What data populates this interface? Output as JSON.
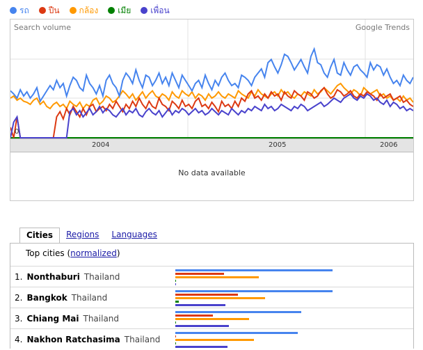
{
  "legend": [
    {
      "label": "รถ",
      "color": "#4684ee"
    },
    {
      "label": "ปืน",
      "color": "#dc3912"
    },
    {
      "label": "กล้อง",
      "color": "#ff9900"
    },
    {
      "label": "เมีย",
      "color": "#008000"
    },
    {
      "label": "เพื่อน",
      "color": "#4942cc"
    }
  ],
  "chart": {
    "search_volume_label": "Search volume",
    "google_trends_label": "Google Trends",
    "zero_label": "0",
    "years": [
      "2004",
      "2005",
      "2006"
    ],
    "no_data": "No data available"
  },
  "chart_data": {
    "type": "line",
    "x_start": "2003-12",
    "x_end": "2006-03",
    "series": [
      {
        "name": "รถ",
        "color": "#4684ee",
        "values": [
          45,
          42,
          38,
          46,
          40,
          44,
          38,
          42,
          48,
          35,
          40,
          45,
          50,
          46,
          55,
          48,
          52,
          40,
          50,
          58,
          55,
          48,
          45,
          60,
          52,
          48,
          42,
          50,
          40,
          55,
          60,
          52,
          48,
          40,
          55,
          62,
          58,
          52,
          65,
          55,
          48,
          60,
          58,
          50,
          55,
          62,
          52,
          58,
          50,
          62,
          55,
          48,
          60,
          55,
          50,
          45,
          52,
          55,
          48,
          60,
          52,
          46,
          55,
          50,
          58,
          62,
          55,
          50,
          52,
          48,
          60,
          58,
          55,
          50,
          58,
          62,
          66,
          58,
          72,
          75,
          68,
          62,
          70,
          80,
          78,
          72,
          65,
          70,
          75,
          68,
          62,
          78,
          85,
          72,
          70,
          62,
          58,
          68,
          75,
          62,
          60,
          72,
          65,
          60,
          68,
          70,
          65,
          62,
          58,
          72,
          65,
          70,
          68,
          60,
          66,
          58,
          52,
          55,
          50,
          60,
          55,
          52,
          58
        ]
      },
      {
        "name": "ปืน",
        "color": "#dc3912",
        "values": [
          10,
          0,
          20,
          0,
          0,
          0,
          0,
          0,
          0,
          0,
          0,
          0,
          0,
          0,
          20,
          25,
          18,
          28,
          22,
          30,
          25,
          20,
          28,
          22,
          30,
          32,
          25,
          28,
          30,
          26,
          32,
          28,
          35,
          30,
          25,
          32,
          28,
          35,
          30,
          38,
          32,
          28,
          35,
          30,
          28,
          38,
          32,
          30,
          26,
          35,
          32,
          28,
          36,
          30,
          32,
          28,
          35,
          38,
          30,
          32,
          28,
          34,
          30,
          25,
          35,
          30,
          32,
          28,
          35,
          30,
          38,
          35,
          42,
          45,
          38,
          40,
          36,
          42,
          38,
          44,
          40,
          42,
          36,
          44,
          40,
          38,
          45,
          42,
          40,
          36,
          44,
          42,
          38,
          40,
          45,
          48,
          42,
          38,
          40,
          46,
          44,
          40,
          42,
          45,
          40,
          38,
          42,
          40,
          44,
          42,
          40,
          36,
          42,
          38,
          40,
          42,
          36,
          38,
          40,
          34,
          36,
          32,
          30
        ]
      },
      {
        "name": "กล้อง",
        "color": "#ff9900",
        "values": [
          38,
          40,
          36,
          38,
          35,
          34,
          32,
          36,
          38,
          32,
          35,
          30,
          28,
          32,
          34,
          30,
          32,
          28,
          35,
          32,
          30,
          34,
          28,
          32,
          30,
          36,
          38,
          32,
          35,
          40,
          38,
          34,
          36,
          40,
          45,
          42,
          38,
          42,
          36,
          40,
          44,
          38,
          42,
          45,
          40,
          38,
          42,
          40,
          36,
          44,
          40,
          38,
          45,
          42,
          40,
          44,
          38,
          42,
          40,
          36,
          42,
          38,
          40,
          44,
          40,
          38,
          42,
          40,
          38,
          45,
          42,
          40,
          38,
          44,
          40,
          46,
          42,
          40,
          38,
          42,
          44,
          40,
          46,
          42,
          44,
          40,
          38,
          42,
          40,
          44,
          42,
          40,
          46,
          42,
          44,
          48,
          45,
          42,
          46,
          50,
          52,
          48,
          45,
          42,
          46,
          44,
          40,
          48,
          45,
          42,
          44,
          46,
          40,
          42,
          38,
          40,
          36,
          38,
          35,
          40,
          36,
          38,
          34
        ]
      },
      {
        "name": "เมีย",
        "color": "#008000",
        "values": [
          0,
          0,
          0,
          0,
          0,
          0,
          0,
          0,
          0,
          0,
          0,
          0,
          0,
          0,
          0,
          0,
          0,
          0,
          0,
          0,
          0,
          0,
          0,
          0,
          0,
          0,
          0,
          0,
          0,
          0,
          0,
          0,
          0,
          0,
          0,
          0,
          0,
          0,
          0,
          0,
          0,
          0,
          0,
          0,
          0,
          0,
          0,
          0,
          0,
          0,
          0,
          0,
          0,
          0,
          0,
          0,
          0,
          0,
          0,
          0,
          0,
          0,
          0,
          0,
          0,
          0,
          0,
          0,
          0,
          0,
          0,
          0,
          0,
          0,
          0,
          0,
          0,
          0,
          0,
          0,
          0,
          0,
          0,
          0,
          0,
          0,
          0,
          0,
          0,
          0,
          0,
          0,
          0,
          0,
          0,
          0,
          0,
          0,
          0,
          0,
          0,
          0,
          0,
          0,
          0,
          0,
          0,
          0,
          0,
          0,
          0,
          0,
          0,
          0,
          0,
          0,
          0,
          0,
          0,
          0,
          0,
          0,
          0
        ]
      },
      {
        "name": "เพื่อน",
        "color": "#4942cc",
        "values": [
          0,
          15,
          20,
          0,
          0,
          0,
          0,
          0,
          0,
          0,
          0,
          0,
          0,
          0,
          0,
          0,
          0,
          0,
          25,
          28,
          22,
          26,
          20,
          24,
          28,
          22,
          25,
          30,
          24,
          28,
          26,
          22,
          20,
          24,
          28,
          22,
          26,
          24,
          28,
          22,
          20,
          25,
          28,
          24,
          22,
          26,
          20,
          24,
          28,
          22,
          26,
          24,
          28,
          26,
          22,
          25,
          28,
          24,
          26,
          22,
          24,
          28,
          25,
          22,
          26,
          24,
          22,
          28,
          25,
          22,
          26,
          24,
          28,
          26,
          30,
          28,
          26,
          32,
          28,
          30,
          26,
          28,
          32,
          30,
          28,
          26,
          30,
          28,
          32,
          30,
          26,
          28,
          30,
          32,
          34,
          30,
          32,
          35,
          38,
          36,
          34,
          38,
          40,
          42,
          38,
          36,
          40,
          38,
          42,
          40,
          36,
          38,
          34,
          32,
          36,
          30,
          34,
          32,
          28,
          30,
          26,
          28,
          26
        ]
      }
    ]
  },
  "tabs": [
    {
      "label": "Cities",
      "active": true
    },
    {
      "label": "Regions",
      "active": false
    },
    {
      "label": "Languages",
      "active": false
    }
  ],
  "table": {
    "header_prefix": "Top cities (",
    "header_link": "normalized",
    "header_suffix": ")",
    "rows": [
      {
        "rank": "1.",
        "city": "Nonthaburi",
        "country": "Thailand",
        "bars": [
          1.0,
          0.31,
          0.53,
          0.003,
          0.003
        ]
      },
      {
        "rank": "2.",
        "city": "Bangkok",
        "country": "Thailand",
        "bars": [
          1.0,
          0.4,
          0.57,
          0.02,
          0.32
        ]
      },
      {
        "rank": "3.",
        "city": "Chiang Mai",
        "country": "Thailand",
        "bars": [
          0.8,
          0.24,
          0.47,
          0.003,
          0.34
        ]
      },
      {
        "rank": "4.",
        "city": "Nakhon Ratchasima",
        "country": "Thailand",
        "bars": [
          0.78,
          0.003,
          0.5,
          0.003,
          0.33
        ]
      }
    ]
  }
}
